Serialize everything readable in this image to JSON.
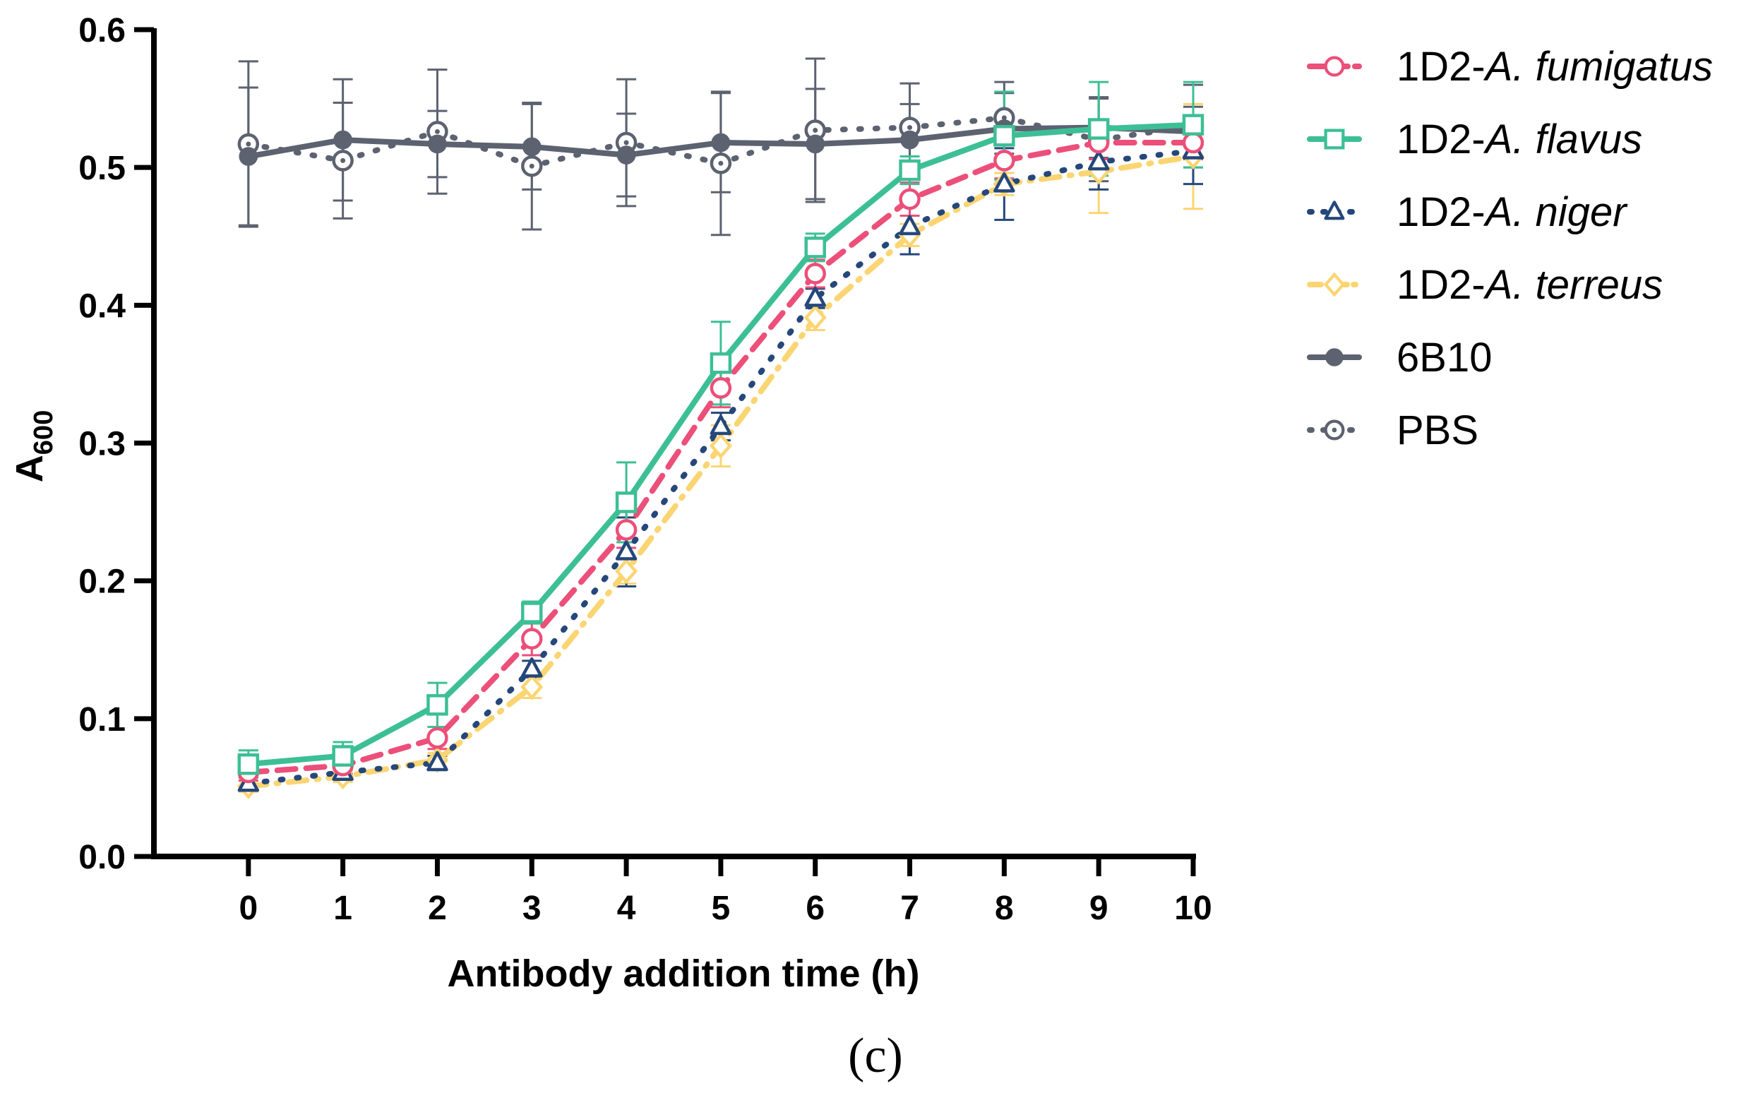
{
  "chart_data": {
    "type": "line",
    "panel_label": "(c)",
    "xlabel": "Antibody addition time (h)",
    "ylabel": {
      "base": "A",
      "subscript": "600"
    },
    "xlim": [
      -1,
      10
    ],
    "ylim": [
      0,
      0.6
    ],
    "xticks": [
      "0",
      "1",
      "2",
      "3",
      "4",
      "5",
      "6",
      "7",
      "8",
      "9",
      "10"
    ],
    "yticks": [
      "0.0",
      "0.1",
      "0.2",
      "0.3",
      "0.4",
      "0.5",
      "0.6"
    ],
    "legend_position": "top-right, outside plot",
    "x": [
      0,
      1,
      2,
      3,
      4,
      5,
      6,
      7,
      8,
      9,
      10
    ],
    "series": [
      {
        "key": "fumigatus",
        "name_prefix": "1D2-",
        "name_italic": "A. fumigatus",
        "color": "#EC4F79",
        "line_style": "dashed",
        "marker": "open-circle",
        "values": [
          0.061,
          0.066,
          0.086,
          0.158,
          0.237,
          0.34,
          0.423,
          0.477,
          0.505,
          0.518,
          0.518
        ],
        "errors": [
          0.006,
          0.006,
          0.008,
          0.012,
          0.013,
          0.014,
          0.01,
          0.012,
          0.013,
          0.012,
          0.012
        ]
      },
      {
        "key": "flavus",
        "name_prefix": "1D2-",
        "name_italic": "A. flavus",
        "color": "#3DBF95",
        "line_style": "solid",
        "marker": "open-square",
        "values": [
          0.067,
          0.073,
          0.11,
          0.177,
          0.257,
          0.358,
          0.442,
          0.498,
          0.523,
          0.528,
          0.531
        ],
        "errors": [
          0.01,
          0.01,
          0.016,
          0.008,
          0.029,
          0.03,
          0.01,
          0.01,
          0.032,
          0.034,
          0.031
        ]
      },
      {
        "key": "niger",
        "name_prefix": "1D2-",
        "name_italic": "A. niger",
        "color": "#25477A",
        "line_style": "dotted",
        "marker": "open-triangle",
        "values": [
          0.053,
          0.061,
          0.068,
          0.136,
          0.221,
          0.312,
          0.405,
          0.457,
          0.488,
          0.504,
          0.512
        ],
        "errors": [
          0.005,
          0.005,
          0.005,
          0.006,
          0.025,
          0.01,
          0.007,
          0.02,
          0.026,
          0.02,
          0.024
        ]
      },
      {
        "key": "terreus",
        "name_prefix": "1D2-",
        "name_italic": "A. terreus",
        "color": "#FBD572",
        "line_style": "dash-dot",
        "marker": "open-diamond",
        "values": [
          0.051,
          0.058,
          0.07,
          0.123,
          0.207,
          0.298,
          0.391,
          0.451,
          0.488,
          0.497,
          0.508
        ],
        "errors": [
          0.004,
          0.004,
          0.005,
          0.008,
          0.009,
          0.015,
          0.009,
          0.008,
          0.008,
          0.03,
          0.038
        ]
      },
      {
        "key": "6b10",
        "name_prefix": "6B10",
        "name_italic": "",
        "color": "#5C6270",
        "line_style": "solid",
        "marker": "filled-circle",
        "values": [
          0.508,
          0.52,
          0.517,
          0.515,
          0.509,
          0.518,
          0.517,
          0.52,
          0.528,
          0.529,
          0.526
        ],
        "errors": [
          0.05,
          0.044,
          0.024,
          0.031,
          0.03,
          0.036,
          0.04,
          0.026,
          0.026,
          0.022,
          0.018
        ]
      },
      {
        "key": "pbs",
        "name_prefix": "PBS",
        "name_italic": "",
        "color": "#5C6270",
        "line_style": "dotted",
        "marker": "open-circle-dot",
        "values": [
          0.517,
          0.505,
          0.526,
          0.501,
          0.518,
          0.503,
          0.527,
          0.529,
          0.536,
          0.52,
          0.53
        ],
        "errors": [
          0.06,
          0.042,
          0.045,
          0.046,
          0.046,
          0.052,
          0.052,
          0.032,
          0.026,
          0.03,
          0.03
        ]
      }
    ]
  }
}
